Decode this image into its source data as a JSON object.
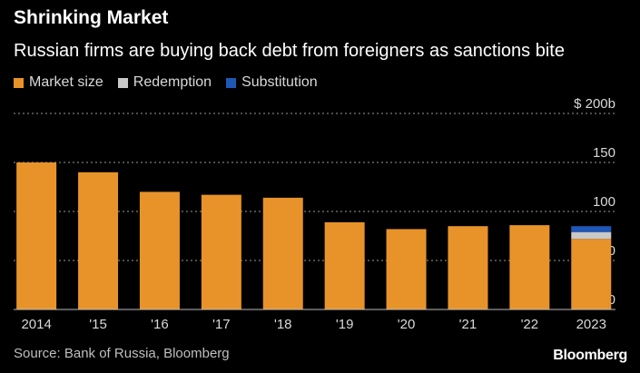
{
  "header": {
    "title": "Shrinking Market",
    "subtitle": "Russian firms are buying back debt from foreigners as sanctions bite"
  },
  "footer": {
    "source": "Source: Bank of Russia, Bloomberg",
    "logo": "Bloomberg"
  },
  "colors": {
    "market": "#e8932a",
    "redemption": "#c8c8c8",
    "substitution": "#1f57b5",
    "grid": "#9a9a9a"
  },
  "chart_data": {
    "type": "bar",
    "stacked": true,
    "categories": [
      "2014",
      "'15",
      "'16",
      "'17",
      "'18",
      "'19",
      "'20",
      "'21",
      "'22",
      "2023"
    ],
    "series": [
      {
        "name": "Market size",
        "color": "#e8932a",
        "values": [
          150,
          140,
          120,
          117,
          114,
          89,
          82,
          85,
          86,
          72
        ]
      },
      {
        "name": "Redemption",
        "color": "#c8c8c8",
        "values": [
          0,
          0,
          0,
          0,
          0,
          0,
          0,
          0,
          0,
          7
        ]
      },
      {
        "name": "Substitution",
        "color": "#1f57b5",
        "values": [
          0,
          0,
          0,
          0,
          0,
          0,
          0,
          0,
          0,
          6
        ]
      }
    ],
    "y_ticks": [
      0,
      50,
      100,
      150,
      200
    ],
    "y_tick_labels": [
      "0",
      "50",
      "100",
      "150",
      "$ 200b"
    ],
    "ylim": [
      0,
      200
    ],
    "grid": true,
    "legend_position": "top-left"
  }
}
